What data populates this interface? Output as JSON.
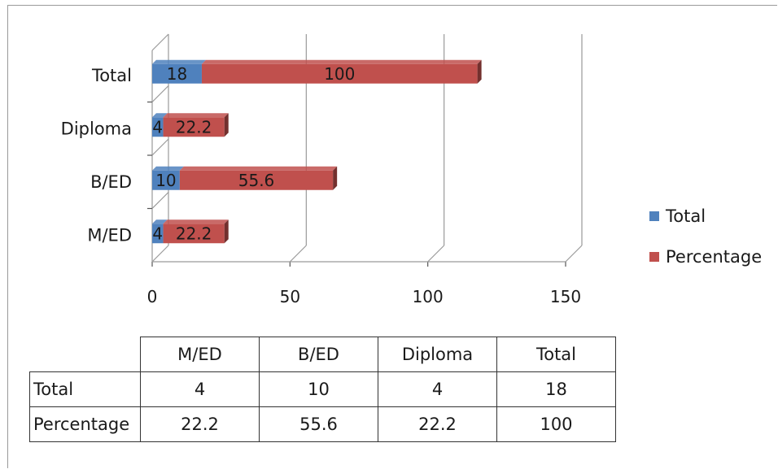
{
  "chart_data": {
    "type": "bar",
    "orientation": "horizontal",
    "stacked": true,
    "categories": [
      "M/ED",
      "B/ED",
      "Diploma",
      "Total"
    ],
    "series": [
      {
        "name": "Total",
        "values": [
          4,
          10,
          4,
          18
        ],
        "labels": [
          "4",
          "10",
          "4",
          "18"
        ],
        "color": "#4f81bd"
      },
      {
        "name": "Percentage",
        "values": [
          22.2,
          55.6,
          22.2,
          100
        ],
        "labels": [
          "22.2",
          "55.6",
          "22.2",
          "100"
        ],
        "color": "#c0504d"
      }
    ],
    "xlim": [
      0,
      150
    ],
    "xticks": [
      "0",
      "50",
      "100",
      "150"
    ],
    "grid": true,
    "legend_position": "right"
  },
  "table": {
    "columns": [
      "M/ED",
      "B/ED",
      "Diploma",
      "Total"
    ],
    "rows": [
      {
        "label": "Total",
        "values": [
          "4",
          "10",
          "4",
          "18"
        ]
      },
      {
        "label": "Percentage",
        "values": [
          "22.2",
          "55.6",
          "22.2",
          "100"
        ]
      }
    ]
  },
  "colors": {
    "total": "#4f81bd",
    "percentage": "#c0504d",
    "grid": "#9a9a9a"
  }
}
